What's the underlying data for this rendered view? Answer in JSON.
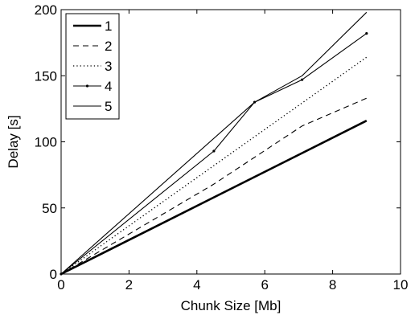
{
  "chart_data": {
    "type": "line",
    "title": "",
    "xlabel": "Chunk Size [Mb]",
    "ylabel": "Delay [s]",
    "xlim": [
      0,
      10
    ],
    "ylim": [
      0,
      200
    ],
    "xticks": [
      0,
      2,
      4,
      6,
      8,
      10
    ],
    "yticks": [
      0,
      50,
      100,
      150,
      200
    ],
    "xtick_labels": [
      "0",
      "2",
      "4",
      "6",
      "8",
      "10"
    ],
    "ytick_labels": [
      "0",
      "50",
      "100",
      "150",
      "200"
    ],
    "grid": false,
    "legend_position": "top-left",
    "series": [
      {
        "name": "1",
        "style": "thick-solid",
        "color": "#000000",
        "x": [
          0,
          9
        ],
        "y": [
          0,
          116
        ]
      },
      {
        "name": "2",
        "style": "dashed",
        "color": "#000000",
        "x": [
          0,
          4.5,
          7.1,
          9
        ],
        "y": [
          0,
          68,
          112,
          133
        ]
      },
      {
        "name": "3",
        "style": "dotted",
        "color": "#000000",
        "x": [
          0,
          9
        ],
        "y": [
          0,
          164
        ]
      },
      {
        "name": "4",
        "style": "solid-point",
        "color": "#000000",
        "x": [
          0,
          4.5,
          5.7,
          7.1,
          9
        ],
        "y": [
          0,
          93,
          130,
          147,
          182
        ]
      },
      {
        "name": "5",
        "style": "thin-solid",
        "color": "#000000",
        "x": [
          0,
          5.7,
          7.1,
          9
        ],
        "y": [
          0,
          130,
          150,
          198
        ]
      }
    ]
  }
}
